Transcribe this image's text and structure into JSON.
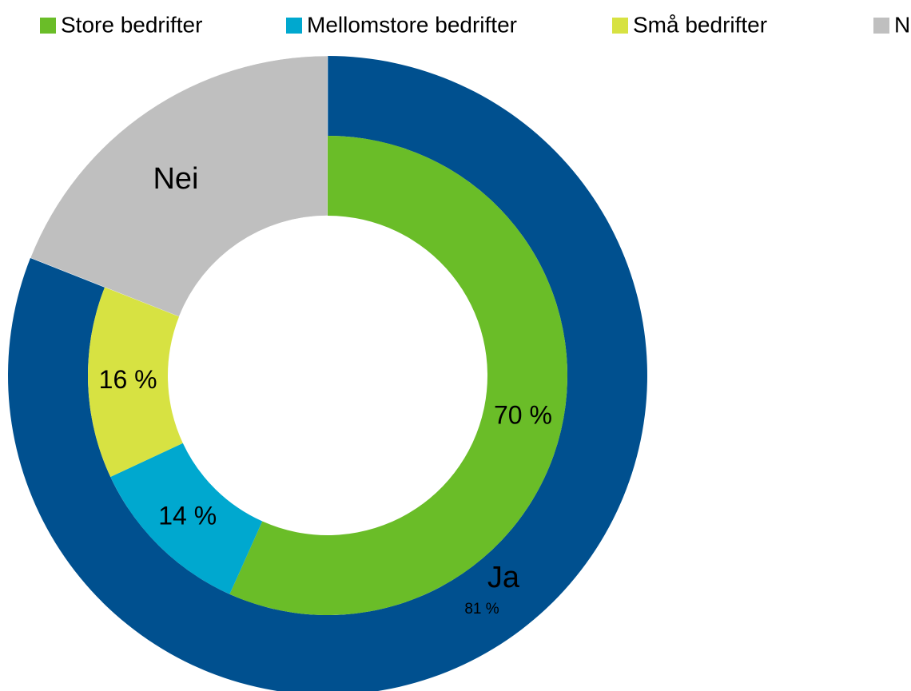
{
  "chart_data": {
    "type": "donut",
    "legend": [
      {
        "name": "Store bedrifter",
        "color": "#6abd28"
      },
      {
        "name": "Mellomstore bedrifter",
        "color": "#00a8cf"
      },
      {
        "name": "Små bedrifter",
        "color": "#d7e242"
      },
      {
        "name": "Nei",
        "color": "#bfbfbf"
      }
    ],
    "outer": {
      "categories": [
        "Ja",
        "Nei"
      ],
      "values": [
        81,
        19
      ],
      "value_labels": [
        "81 %",
        null
      ],
      "colors": [
        "#00508f",
        "#bfbfbf"
      ]
    },
    "inner": {
      "values": [
        70,
        14,
        16
      ],
      "value_labels": [
        "70 %",
        "14 %",
        "16 %"
      ],
      "colors": [
        "#6abd28",
        "#00a8cf",
        "#d7e242"
      ]
    }
  }
}
